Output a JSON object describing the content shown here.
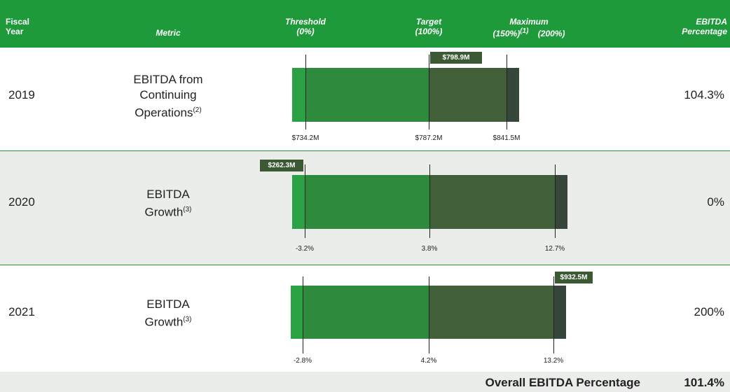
{
  "header": {
    "fiscal_year": [
      "Fiscal",
      "Year"
    ],
    "metric": "Metric",
    "threshold": "Threshold",
    "threshold_pct": "(0%)",
    "target": "Target",
    "target_pct": "(100%)",
    "maximum": "Maximum",
    "maximum_pct": "(150%)",
    "maximum_note": "(1)",
    "maximum_pct2": "(200%)",
    "ebitda_pct": [
      "EBITDA",
      "Percentage"
    ]
  },
  "rows": [
    {
      "year": "2019",
      "metric": [
        "EBITDA from",
        "Continuing",
        "Operations"
      ],
      "note": "(2)",
      "actual": "$798.9M",
      "threshold": "$734.2M",
      "target": "$787.2M",
      "maximum": "$841.5M",
      "percentage": "104.3%"
    },
    {
      "year": "2020",
      "metric": [
        "EBITDA",
        "Growth"
      ],
      "note": "(3)",
      "actual": "$262.3M",
      "threshold": "-3.2%",
      "target": "3.8%",
      "maximum": "12.7%",
      "percentage": "0%"
    },
    {
      "year": "2021",
      "metric": [
        "EBITDA",
        "Growth"
      ],
      "note": "(3)",
      "actual": "$932.5M",
      "threshold": "-2.8%",
      "target": "4.2%",
      "maximum": "13.2%",
      "percentage": "200%"
    }
  ],
  "footer": {
    "label": "Overall EBITDA Percentage",
    "value": "101.4%"
  }
}
